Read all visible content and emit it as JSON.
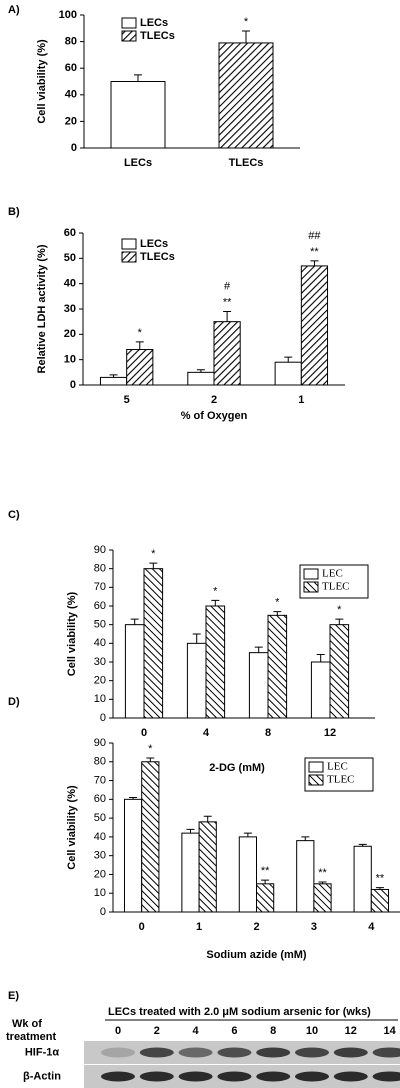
{
  "chart_data": [
    {
      "type": "bar",
      "panel_label": "A)",
      "ylabel": "Cell viability (%)",
      "categories": [
        "LECs",
        "TLECs"
      ],
      "grouped": false,
      "ylim": [
        0,
        100
      ],
      "yticks": [
        0,
        20,
        40,
        60,
        80,
        100
      ],
      "legend": "upper left",
      "legend_frame": false,
      "hatch_direction": "right",
      "series": [
        {
          "name": "LECs",
          "color": "#ffffff",
          "hatch": false,
          "values": [
            50,
            null
          ],
          "errors": [
            5,
            null
          ],
          "annotations": [
            [],
            []
          ]
        },
        {
          "name": "TLECs",
          "color": "#000000",
          "hatch": true,
          "values": [
            null,
            79
          ],
          "errors": [
            null,
            9
          ],
          "annotations": [
            [],
            [
              "*"
            ]
          ]
        }
      ]
    },
    {
      "type": "bar",
      "panel_label": "B)",
      "ylabel": "Relative LDH activity (%)",
      "xlabel": "% of Oxygen",
      "categories": [
        "5",
        "2",
        "1"
      ],
      "grouped": true,
      "ylim": [
        0,
        60
      ],
      "yticks": [
        0,
        10,
        20,
        30,
        40,
        50,
        60
      ],
      "legend": "upper left",
      "legend_frame": false,
      "hatch_direction": "right",
      "series": [
        {
          "name": "LECs",
          "color": "#ffffff",
          "hatch": false,
          "values": [
            3,
            5,
            9
          ],
          "errors": [
            1,
            1,
            2
          ],
          "annotations": [
            [],
            [],
            []
          ]
        },
        {
          "name": "TLECs",
          "color": "#000000",
          "hatch": true,
          "values": [
            14,
            25,
            47
          ],
          "errors": [
            3,
            4,
            2
          ],
          "annotations": [
            [
              "*"
            ],
            [
              "#",
              "**"
            ],
            [
              "##",
              "**"
            ]
          ]
        }
      ]
    },
    {
      "type": "bar",
      "panel_label": "C)",
      "ylabel": "Cell viability (%)",
      "xlabel": "2-DG (mM)",
      "categories": [
        "0",
        "4",
        "8",
        "12"
      ],
      "grouped": true,
      "ylim": [
        0,
        90
      ],
      "yticks": [
        0,
        10,
        20,
        30,
        40,
        50,
        60,
        70,
        80,
        90
      ],
      "legend": "upper right",
      "legend_frame": true,
      "hatch_direction": "left",
      "series": [
        {
          "name": "LEC",
          "color": "#ffffff",
          "hatch": false,
          "values": [
            50,
            40,
            35,
            30
          ],
          "errors": [
            3,
            5,
            3,
            4
          ],
          "annotations": [
            [],
            [],
            [],
            []
          ]
        },
        {
          "name": "TLEC",
          "color": "#000000",
          "hatch": true,
          "values": [
            80,
            60,
            55,
            50
          ],
          "errors": [
            3,
            3,
            2,
            3
          ],
          "annotations": [
            [
              "*"
            ],
            [
              "*"
            ],
            [
              "*"
            ],
            [
              "*"
            ]
          ]
        }
      ]
    },
    {
      "type": "bar",
      "panel_label": "D)",
      "ylabel": "Cell viability (%)",
      "xlabel": "Sodium azide (mM)",
      "categories": [
        "0",
        "1",
        "2",
        "3",
        "4"
      ],
      "grouped": true,
      "ylim": [
        0,
        90
      ],
      "yticks": [
        0,
        10,
        20,
        30,
        40,
        50,
        60,
        70,
        80,
        90
      ],
      "legend": "upper right",
      "legend_frame": true,
      "hatch_direction": "left",
      "series": [
        {
          "name": "LEC",
          "color": "#ffffff",
          "hatch": false,
          "values": [
            60,
            42,
            40,
            38,
            35
          ],
          "errors": [
            1,
            2,
            2,
            2,
            1
          ],
          "annotations": [
            [],
            [],
            [],
            [],
            []
          ]
        },
        {
          "name": "TLEC",
          "color": "#000000",
          "hatch": true,
          "values": [
            80,
            48,
            15,
            15,
            12
          ],
          "errors": [
            2,
            3,
            2,
            1,
            1
          ],
          "annotations": [
            [
              "*"
            ],
            [],
            [
              "**"
            ],
            [
              "**"
            ],
            [
              "**"
            ]
          ]
        }
      ]
    }
  ],
  "blot": {
    "panel_label": "E)",
    "title": "LECs treated with 2.0 μM sodium arsenic for (wks)",
    "row_header": [
      "Wk of",
      "treatment"
    ],
    "lanes": [
      "0",
      "2",
      "4",
      "6",
      "8",
      "10",
      "12",
      "14"
    ],
    "rows": [
      "HIF-1α",
      "β-Actin"
    ]
  }
}
